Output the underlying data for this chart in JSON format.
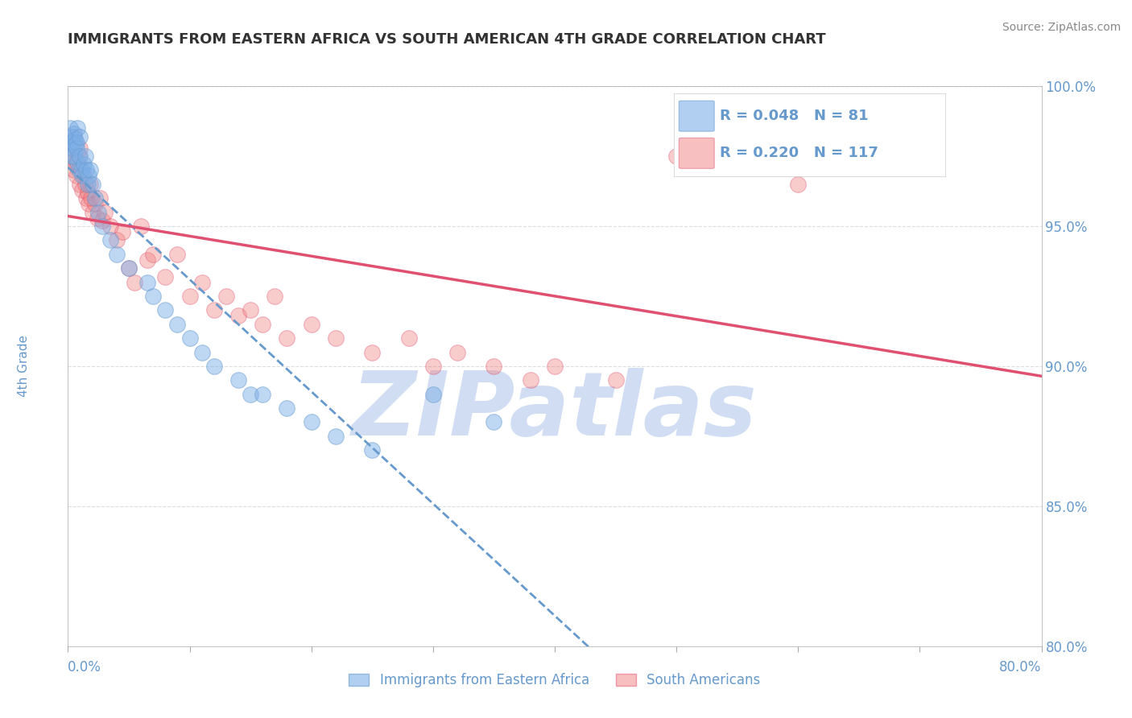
{
  "title": "IMMIGRANTS FROM EASTERN AFRICA VS SOUTH AMERICAN 4TH GRADE CORRELATION CHART",
  "source_text": "Source: ZipAtlas.com",
  "ylabel": "4th Grade",
  "xlim": [
    0.0,
    80.0
  ],
  "ylim": [
    80.0,
    100.0
  ],
  "yticks": [
    80.0,
    85.0,
    90.0,
    95.0,
    100.0
  ],
  "xticks": [
    0.0,
    10.0,
    20.0,
    30.0,
    40.0,
    50.0,
    60.0,
    70.0,
    80.0
  ],
  "legend1_r": "0.048",
  "legend1_n": "81",
  "legend2_r": "0.220",
  "legend2_n": "117",
  "legend1_label": "Immigrants from Eastern Africa",
  "legend2_label": "South Americans",
  "blue_color": "#7EB0E8",
  "pink_color": "#F08080",
  "blue_line_color": "#6699CC",
  "pink_line_color": "#E05070",
  "watermark": "ZIPatlas",
  "watermark_color": "#C8D8F0",
  "background_color": "#FFFFFF",
  "grid_color": "#DDDDDD",
  "axis_color": "#AAAAAA",
  "label_color": "#6699CC",
  "blue_scatter": {
    "x": [
      0.2,
      0.3,
      0.3,
      0.4,
      0.4,
      0.5,
      0.5,
      0.6,
      0.6,
      0.7,
      0.7,
      0.8,
      0.8,
      0.9,
      1.0,
      1.0,
      1.1,
      1.2,
      1.3,
      1.4,
      1.5,
      1.6,
      1.7,
      1.8,
      2.0,
      2.2,
      2.5,
      2.8,
      3.5,
      4.0,
      5.0,
      6.5,
      7.0,
      8.0,
      9.0,
      10.0,
      11.0,
      12.0,
      14.0,
      15.0,
      16.0,
      18.0,
      20.0,
      22.0,
      25.0,
      30.0,
      35.0
    ],
    "y": [
      98.5,
      97.5,
      98.2,
      97.8,
      98.0,
      98.3,
      97.5,
      98.1,
      97.9,
      98.0,
      97.8,
      98.5,
      97.3,
      97.0,
      98.2,
      97.5,
      97.0,
      96.8,
      97.2,
      97.5,
      97.0,
      96.5,
      96.8,
      97.0,
      96.5,
      96.0,
      95.5,
      95.0,
      94.5,
      94.0,
      93.5,
      93.0,
      92.5,
      92.0,
      91.5,
      91.0,
      90.5,
      90.0,
      89.5,
      89.0,
      89.0,
      88.5,
      88.0,
      87.5,
      87.0,
      89.0,
      88.0
    ]
  },
  "pink_scatter": {
    "x": [
      0.2,
      0.3,
      0.3,
      0.4,
      0.5,
      0.5,
      0.6,
      0.7,
      0.8,
      0.9,
      1.0,
      1.0,
      1.1,
      1.2,
      1.3,
      1.4,
      1.5,
      1.6,
      1.7,
      1.8,
      1.9,
      2.0,
      2.2,
      2.4,
      2.6,
      2.8,
      3.0,
      3.5,
      4.0,
      4.5,
      5.0,
      5.5,
      6.0,
      6.5,
      7.0,
      8.0,
      9.0,
      10.0,
      11.0,
      12.0,
      13.0,
      14.0,
      15.0,
      16.0,
      17.0,
      18.0,
      20.0,
      22.0,
      25.0,
      28.0,
      30.0,
      32.0,
      35.0,
      38.0,
      40.0,
      45.0,
      50.0,
      60.0,
      70.0
    ],
    "y": [
      97.5,
      97.8,
      98.0,
      97.3,
      97.0,
      98.2,
      97.5,
      96.8,
      97.2,
      97.5,
      96.5,
      97.8,
      97.0,
      96.3,
      96.8,
      96.5,
      96.0,
      96.2,
      95.8,
      96.5,
      96.0,
      95.5,
      95.8,
      95.3,
      96.0,
      95.2,
      95.5,
      95.0,
      94.5,
      94.8,
      93.5,
      93.0,
      95.0,
      93.8,
      94.0,
      93.2,
      94.0,
      92.5,
      93.0,
      92.0,
      92.5,
      91.8,
      92.0,
      91.5,
      92.5,
      91.0,
      91.5,
      91.0,
      90.5,
      91.0,
      90.0,
      90.5,
      90.0,
      89.5,
      90.0,
      89.5,
      97.5,
      96.5,
      98.5
    ]
  }
}
